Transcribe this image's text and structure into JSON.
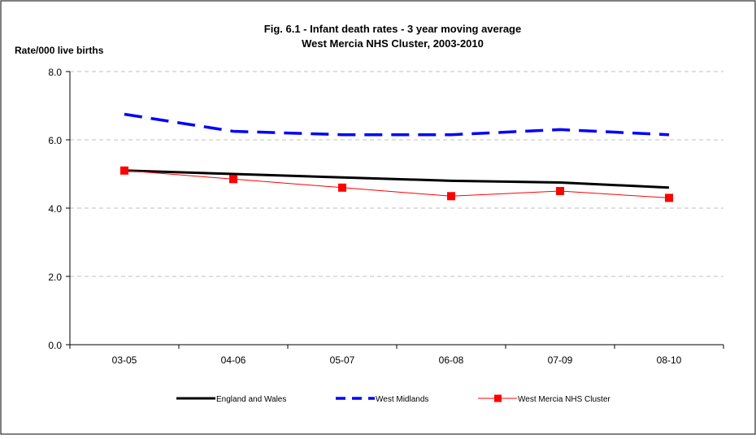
{
  "chart_data": {
    "type": "line",
    "title": "Fig. 6.1 - Infant death rates - 3 year moving average",
    "subtitle": "West Mercia NHS Cluster, 2003-2010",
    "ylabel": "Rate/000 live births",
    "xlabel": "",
    "ylim": [
      0,
      8
    ],
    "yticks": [
      "0.0",
      "2.0",
      "4.0",
      "6.0",
      "8.0"
    ],
    "grid": true,
    "legend_position": "bottom",
    "categories": [
      "03-05",
      "04-06",
      "05-07",
      "06-08",
      "07-09",
      "08-10"
    ],
    "series": [
      {
        "name": "England and Wales",
        "values": [
          5.1,
          5.0,
          4.9,
          4.8,
          4.75,
          4.6
        ],
        "color": "#000000",
        "style": "solid-thick"
      },
      {
        "name": "West Midlands",
        "values": [
          6.75,
          6.25,
          6.15,
          6.15,
          6.3,
          6.15
        ],
        "color": "#0000FF",
        "style": "dashed"
      },
      {
        "name": "West Mercia NHS Cluster",
        "values": [
          5.1,
          4.85,
          4.6,
          4.35,
          4.5,
          4.3
        ],
        "color": "#FF0000",
        "style": "thin-square-markers"
      }
    ]
  }
}
